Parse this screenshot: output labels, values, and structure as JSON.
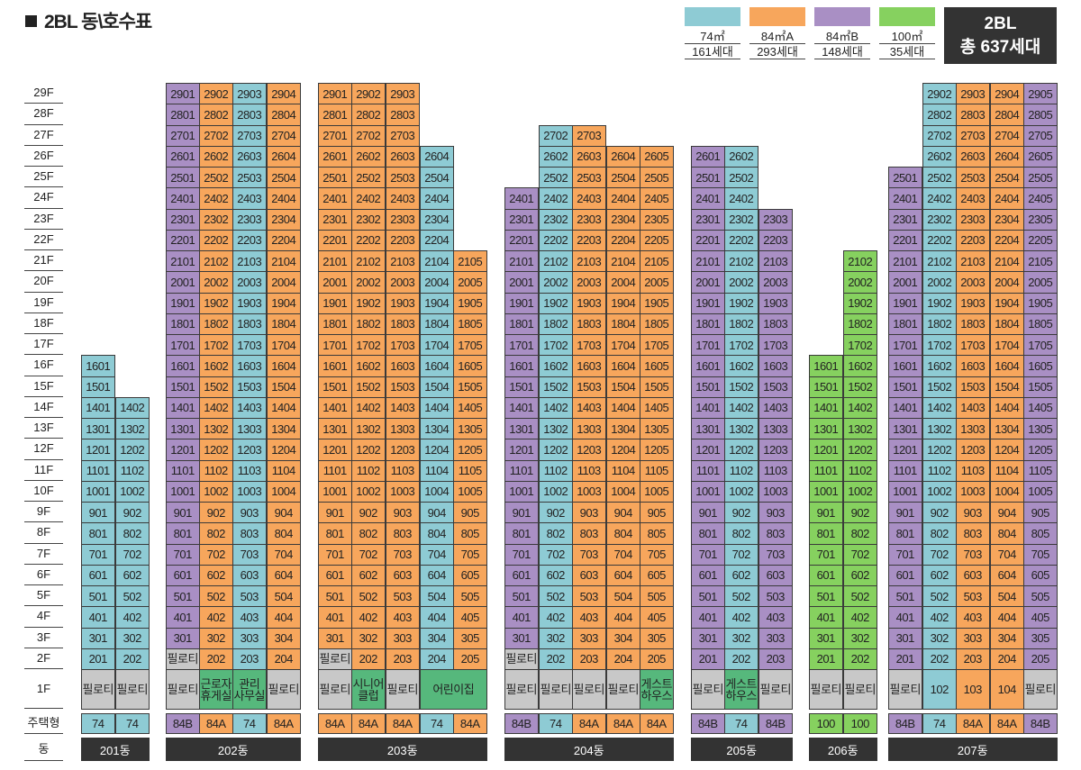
{
  "title": "2BL 동\\호수표",
  "summary": {
    "line1": "2BL",
    "line2": "총 637세대"
  },
  "legend": [
    {
      "label": "74㎡",
      "count": "161세대",
      "color": "#8ecbd4"
    },
    {
      "label": "84㎡A",
      "count": "293세대",
      "color": "#f7a65c"
    },
    {
      "label": "84㎡B",
      "count": "148세대",
      "color": "#a98fc4"
    },
    {
      "label": "100㎡",
      "count": "35세대",
      "color": "#86d15f"
    }
  ],
  "floors": [
    "29F",
    "28F",
    "27F",
    "26F",
    "25F",
    "24F",
    "23F",
    "22F",
    "21F",
    "20F",
    "19F",
    "18F",
    "17F",
    "16F",
    "15F",
    "14F",
    "13F",
    "12F",
    "11F",
    "10F",
    "9F",
    "8F",
    "7F",
    "6F",
    "5F",
    "4F",
    "3F",
    "2F",
    "1F"
  ],
  "row_labels": {
    "type": "주택형",
    "building": "동"
  },
  "pilotis": "필로티",
  "buildings": [
    {
      "name": "201동",
      "columns": [
        {
          "type": "74",
          "top": 16,
          "bottom": 2,
          "first": "필로티"
        },
        {
          "type": "74",
          "top": 14,
          "bottom": 2,
          "first": "필로티"
        }
      ]
    },
    {
      "name": "202동",
      "columns": [
        {
          "type": "84B",
          "top": 29,
          "bottom": 3,
          "first": "필로티",
          "second": "필로티"
        },
        {
          "type": "84A",
          "top": 29,
          "bottom": 2,
          "first": "근로자 휴게실"
        },
        {
          "type": "74",
          "top": 29,
          "bottom": 2,
          "first": "관리 사무실"
        },
        {
          "type": "84A",
          "top": 29,
          "bottom": 2,
          "first": "필로티"
        }
      ]
    },
    {
      "name": "203동",
      "columns": [
        {
          "type": "84A",
          "top": 29,
          "bottom": 3,
          "first": "필로티",
          "second": "필로티"
        },
        {
          "type": "84A",
          "top": 29,
          "bottom": 2,
          "first": "시니어 클럽"
        },
        {
          "type": "84A",
          "top": 29,
          "bottom": 2,
          "first": "필로티"
        },
        {
          "type": "74",
          "top": 26,
          "bottom": 2,
          "first": "어린이집",
          "span": 2
        },
        {
          "type": "84A",
          "top": 21,
          "bottom": 2
        }
      ]
    },
    {
      "name": "204동",
      "columns": [
        {
          "type": "84B",
          "top": 24,
          "bottom": 3,
          "first": "필로티",
          "second": "필로티"
        },
        {
          "type": "74",
          "top": 27,
          "bottom": 2,
          "first": "필로티"
        },
        {
          "type": "84A",
          "top": 27,
          "bottom": 2,
          "first": "필로티"
        },
        {
          "type": "84A",
          "top": 26,
          "bottom": 2,
          "first": "필로티"
        },
        {
          "type": "84A",
          "top": 26,
          "bottom": 2,
          "first": "게스트 하우스"
        }
      ]
    },
    {
      "name": "205동",
      "columns": [
        {
          "type": "84B",
          "top": 26,
          "bottom": 2,
          "first": "필로티"
        },
        {
          "type": "74",
          "top": 26,
          "bottom": 2,
          "first": "게스트 하우스"
        },
        {
          "type": "84B",
          "top": 23,
          "bottom": 2,
          "first": "필로티"
        }
      ]
    },
    {
      "name": "206동",
      "columns": [
        {
          "type": "100",
          "top": 16,
          "bottom": 2,
          "first": "필로티"
        },
        {
          "type": "100",
          "top": 21,
          "bottom": 2,
          "first": "필로티"
        }
      ]
    },
    {
      "name": "207동",
      "columns": [
        {
          "type": "84B",
          "top": 25,
          "bottom": 2,
          "first": "필로티"
        },
        {
          "type": "74",
          "top": 29,
          "bottom": 2,
          "first": "102"
        },
        {
          "type": "84A",
          "top": 29,
          "bottom": 2,
          "first": "103"
        },
        {
          "type": "84A",
          "top": 29,
          "bottom": 2,
          "first": "104"
        },
        {
          "type": "84B",
          "top": 29,
          "bottom": 2,
          "first": "필로티"
        }
      ]
    }
  ]
}
